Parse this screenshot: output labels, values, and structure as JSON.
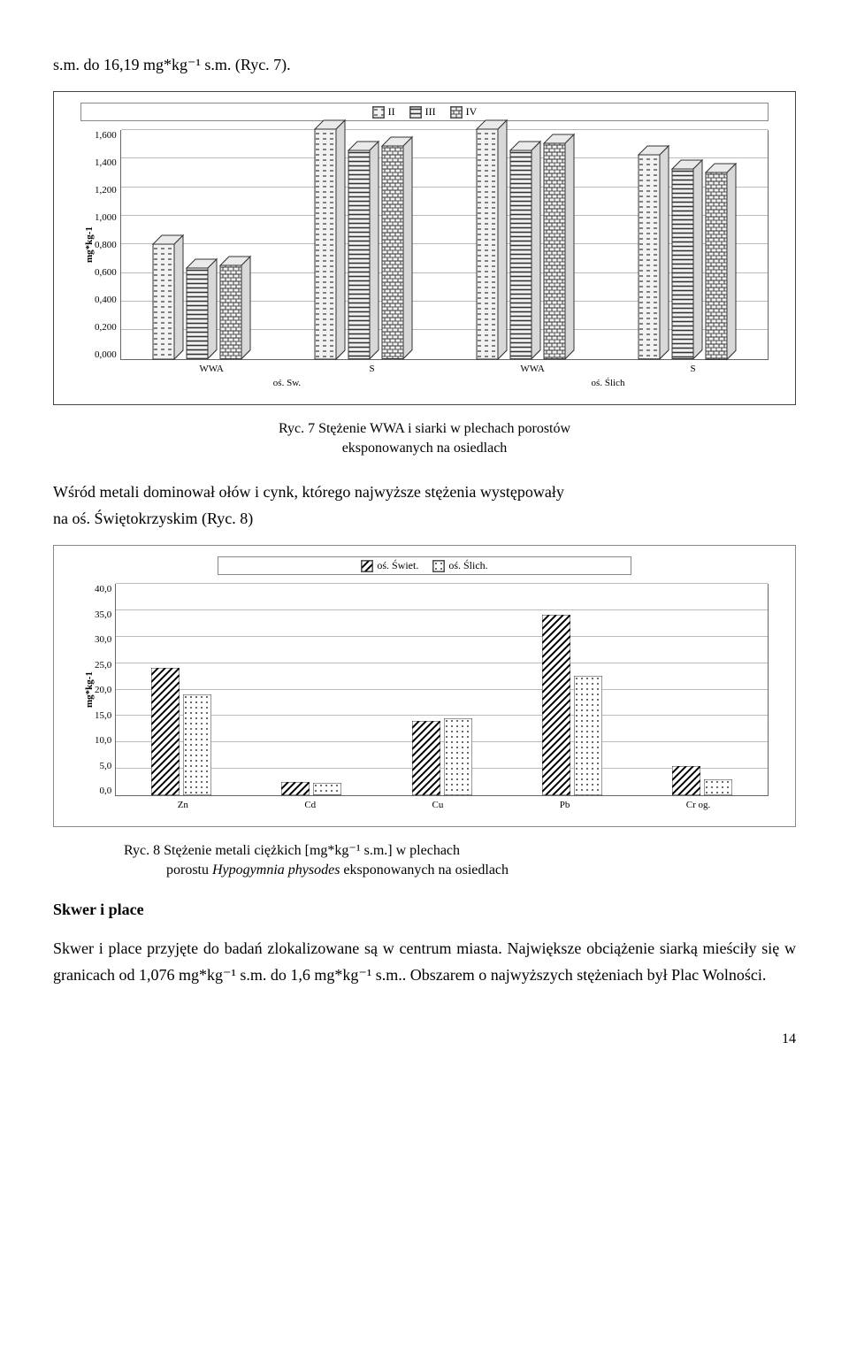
{
  "intro_line": "s.m. do 16,19 mg*kg⁻¹ s.m. (Ryc. 7).",
  "chart1": {
    "type": "grouped-bar-3d",
    "legend_items": [
      "II",
      "III",
      "IV"
    ],
    "legend_patterns": [
      "dash",
      "hstripe",
      "brick"
    ],
    "ylabel": "mg*kg-1",
    "ymax": 1.6,
    "ytick_step": 0.2,
    "yticks": [
      "0,000",
      "0,200",
      "0,400",
      "0,600",
      "0,800",
      "1,000",
      "1,200",
      "1,400",
      "1,600"
    ],
    "groups": [
      {
        "cat": "WWA",
        "subgroup": "oś. Sw.",
        "vals": [
          0.8,
          0.63,
          0.65
        ]
      },
      {
        "cat": "S",
        "subgroup": "oś. Sw.",
        "vals": [
          1.6,
          1.45,
          1.48
        ]
      },
      {
        "cat": "WWA",
        "subgroup": "oś. Ślich",
        "vals": [
          1.6,
          1.45,
          1.5
        ]
      },
      {
        "cat": "S",
        "subgroup": "oś. Ślich",
        "vals": [
          1.42,
          1.32,
          1.3
        ]
      }
    ],
    "xcats": [
      "WWA",
      "S",
      "WWA",
      "S"
    ],
    "xsubs": [
      "oś. Sw.",
      "oś. Ślich"
    ],
    "bar_colors_base": "#f0f0f0",
    "grid_color": "#bbb",
    "title_fontsize": 12
  },
  "caption1_pre": "Ryc. 7 Stężenie  WWA i siarki w plechach porostów",
  "caption1_line2": "eksponowanych na osiedlach",
  "para2_l1": "Wśród metali dominował ołów i cynk, którego najwyższe stężenia występowały",
  "para2_l2": "na oś. Świętokrzyskim (Ryc. 8)",
  "chart2": {
    "type": "grouped-bar-2d",
    "legend_items": [
      "oś. Świet.",
      "oś. Ślich."
    ],
    "legend_patterns": [
      "diag",
      "dots"
    ],
    "ylabel": "mg*kg-1",
    "ymax": 40,
    "ytick_step": 5,
    "yticks": [
      "0,0",
      "5,0",
      "10,0",
      "15,0",
      "20,0",
      "25,0",
      "30,0",
      "35,0",
      "40,0"
    ],
    "groups": [
      {
        "cat": "Zn",
        "vals": [
          24.0,
          19.0
        ]
      },
      {
        "cat": "Cd",
        "vals": [
          2.5,
          2.3
        ]
      },
      {
        "cat": "Cu",
        "vals": [
          14.0,
          14.5
        ]
      },
      {
        "cat": "Pb",
        "vals": [
          34.0,
          22.5
        ]
      },
      {
        "cat": "Cr og.",
        "vals": [
          5.5,
          3.0
        ]
      }
    ],
    "grid_color": "#bbb"
  },
  "caption2_line1": "Ryc. 8 Stężenie metali ciężkich [mg*kg⁻¹ s.m.] w plechach",
  "caption2_line2_pre": "porostu ",
  "caption2_line2_italic": "Hypogymnia physodes",
  "caption2_line2_post": " eksponowanych na osiedlach",
  "section_heading": "Skwer i place",
  "para3_l1": "Skwer i place przyjęte do badań zlokalizowane są w centrum miasta.",
  "para3_l2": "Największe obciążenie siarką mieściły się w granicach od 1,076 mg*kg⁻¹ s.m.",
  "para3_l3": "do 1,6 mg*kg⁻¹ s.m.. Obszarem o najwyższych stężeniach był Plac Wolności.",
  "page_number": "14"
}
